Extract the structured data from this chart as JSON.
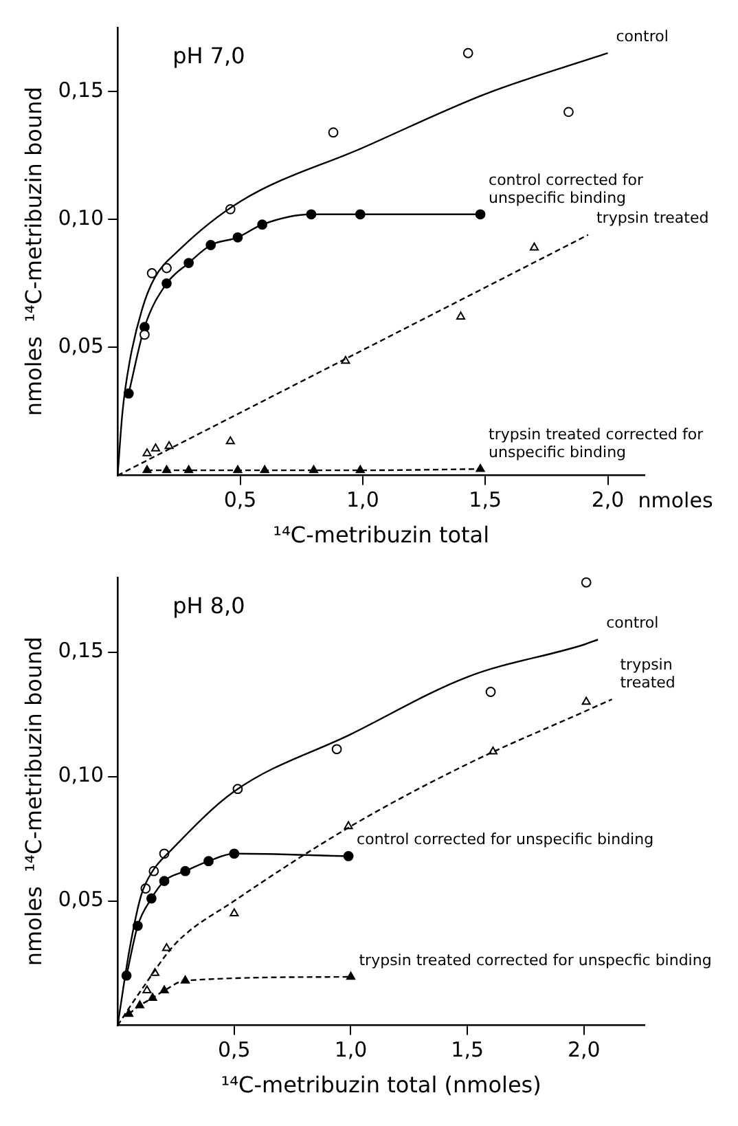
{
  "chart_data": [
    {
      "type": "scatter",
      "title": "pH 7,0",
      "xlabel": "¹⁴C-metribuzin total",
      "ylabel": "nmoles  ¹⁴C-metribuzin bound",
      "annotations": [
        "nmoles"
      ],
      "xlim": [
        0,
        2.15
      ],
      "ylim": [
        0,
        0.175
      ],
      "xticks": [
        {
          "value": 0.5,
          "label": "0,5"
        },
        {
          "value": 1,
          "label": "1,0"
        },
        {
          "value": 1.5,
          "label": "1,5"
        },
        {
          "value": 2,
          "label": "2,0"
        }
      ],
      "yticks": [
        {
          "value": 0.05,
          "label": "0,05"
        },
        {
          "value": 0.1,
          "label": "0,10"
        },
        {
          "value": 0.15,
          "label": "0,15"
        }
      ],
      "grid": false,
      "legend": false,
      "series": [
        {
          "name": "control",
          "type": "line",
          "color": "#000000",
          "marker": "none",
          "line_style": "solid",
          "x": [
            0,
            0.02,
            0.05,
            0.1,
            0.15,
            0.25,
            0.5,
            1.0,
            1.5,
            2.0
          ],
          "values": [
            0,
            0.025,
            0.045,
            0.065,
            0.077,
            0.088,
            0.107,
            0.128,
            0.149,
            0.165
          ]
        },
        {
          "color": "#000000",
          "marker": "circle",
          "x": [
            0.11,
            0.14,
            0.2,
            0.46,
            0.88,
            1.43,
            1.84
          ],
          "values": [
            0.055,
            0.079,
            0.081,
            0.104,
            0.134,
            0.165,
            0.142
          ]
        },
        {
          "name": "control corrected for unspecific binding",
          "type": "line",
          "color": "#000000",
          "marker": "circle",
          "line_style": "solid",
          "x": [
            0.045,
            0.11,
            0.2,
            0.29,
            0.38,
            0.49,
            0.59,
            0.79,
            0.99,
            1.48
          ],
          "values": [
            0.032,
            0.058,
            0.075,
            0.083,
            0.09,
            0.093,
            0.098,
            0.102,
            0.102,
            0.102
          ]
        },
        {
          "name": "trypsin treated",
          "type": "line",
          "color": "#000000",
          "marker": "none",
          "line_style": "dashed",
          "x": [
            0,
            1.92
          ],
          "values": [
            0,
            0.094
          ]
        },
        {
          "color": "#000000",
          "marker": "triangle",
          "x": [
            0.12,
            0.155,
            0.21,
            0.46,
            0.93,
            1.4,
            1.7
          ],
          "values": [
            0.0086,
            0.0105,
            0.0114,
            0.0133,
            0.0447,
            0.062,
            0.089
          ]
        },
        {
          "name": "trypsin treated corrected for unspecific binding",
          "type": "line",
          "color": "#000000",
          "marker": "triangle",
          "line_style": "dashed",
          "x": [
            0.12,
            0.2,
            0.29,
            0.49,
            0.6,
            0.8,
            0.99,
            1.48
          ],
          "values": [
            0.002,
            0.002,
            0.002,
            0.002,
            0.002,
            0.002,
            0.002,
            0.0025
          ]
        }
      ]
    },
    {
      "type": "scatter",
      "title": "pH 8,0",
      "xlabel": "¹⁴C-metribuzin total (nmoles)",
      "ylabel": "nmoles  ¹⁴C-metribuzin bound",
      "xlim": [
        0,
        2.26
      ],
      "ylim": [
        0,
        0.18
      ],
      "xticks": [
        {
          "value": 0.5,
          "label": "0,5"
        },
        {
          "value": 1,
          "label": "1,0"
        },
        {
          "value": 1.5,
          "label": "1,5"
        },
        {
          "value": 2,
          "label": "2,0"
        }
      ],
      "yticks": [
        {
          "value": 0.05,
          "label": "0,05"
        },
        {
          "value": 0.1,
          "label": "0,10"
        },
        {
          "value": 0.15,
          "label": "0,15"
        }
      ],
      "grid": false,
      "legend": false,
      "series": [
        {
          "name": "control",
          "type": "line",
          "color": "#000000",
          "marker": "none",
          "line_style": "solid",
          "x": [
            0,
            0.05,
            0.1,
            0.15,
            0.225,
            0.5,
            1.0,
            1.5,
            2.0,
            2.06
          ],
          "values": [
            0,
            0.03,
            0.052,
            0.062,
            0.07,
            0.094,
            0.117,
            0.14,
            0.153,
            0.155
          ]
        },
        {
          "color": "#000000",
          "marker": "circle",
          "x": [
            0.12,
            0.155,
            0.2,
            0.515,
            0.94,
            1.6,
            2.01
          ],
          "values": [
            0.055,
            0.062,
            0.069,
            0.095,
            0.111,
            0.134,
            0.178
          ]
        },
        {
          "name": "control corrected for unspecific binding",
          "type": "line",
          "color": "#000000",
          "marker": "circle",
          "line_style": "solid",
          "x": [
            0.038,
            0.086,
            0.145,
            0.2,
            0.29,
            0.39,
            0.5,
            0.99
          ],
          "values": [
            0.02,
            0.04,
            0.051,
            0.058,
            0.062,
            0.066,
            0.069,
            0.068
          ]
        },
        {
          "name": "trypsin treated",
          "type": "line",
          "color": "#000000",
          "marker": "none",
          "line_style": "dashed",
          "x": [
            0,
            0.1,
            0.25,
            0.5,
            1.0,
            1.5,
            2.0,
            2.12
          ],
          "values": [
            0,
            0.014,
            0.033,
            0.05,
            0.08,
            0.105,
            0.126,
            0.131
          ]
        },
        {
          "color": "#000000",
          "marker": "triangle",
          "x": [
            0.126,
            0.16,
            0.21,
            0.5,
            0.99,
            1.61,
            2.01
          ],
          "values": [
            0.014,
            0.021,
            0.031,
            0.045,
            0.08,
            0.11,
            0.13
          ]
        },
        {
          "name": "trypsin treated corrected for unspecfic binding",
          "type": "line",
          "color": "#000000",
          "marker": "triangle",
          "line_style": "dashed",
          "x": [
            0.048,
            0.095,
            0.15,
            0.2,
            0.29,
            1.0
          ],
          "values": [
            0.0046,
            0.008,
            0.011,
            0.014,
            0.018,
            0.0195
          ]
        }
      ]
    }
  ]
}
